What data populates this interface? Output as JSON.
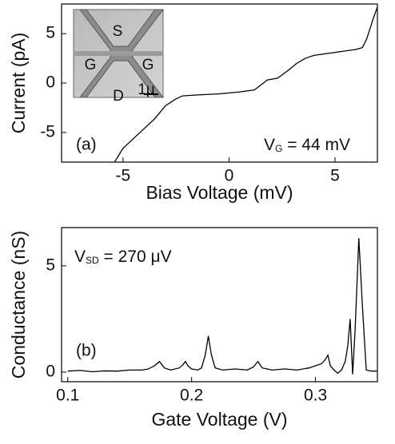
{
  "chart_data": [
    {
      "type": "line",
      "xlabel": "Bias Voltage (mV)",
      "ylabel": "Current (pA)",
      "x": [
        -5.4,
        -5,
        -4.5,
        -4,
        -3.5,
        -3,
        -2.5,
        -2.2,
        -1.5,
        -0.5,
        0.5,
        1.2,
        1.5,
        1.8,
        2.3,
        2.8,
        3.2,
        3.6,
        4,
        5,
        6,
        6.3,
        6.5,
        6.8,
        7
      ],
      "values": [
        -8,
        -6.6,
        -5.6,
        -4.6,
        -3.6,
        -2.3,
        -1.6,
        -1.3,
        -1.2,
        -1.1,
        -0.9,
        -0.7,
        -0.2,
        0.3,
        0.5,
        1.3,
        2,
        2.5,
        2.8,
        3.1,
        3.4,
        3.6,
        4.5,
        6.5,
        7.7
      ],
      "color": "#000000",
      "xlim": [
        -7.9,
        7
      ],
      "xticks": [
        -5,
        0,
        5
      ],
      "ylim": [
        -8,
        8
      ],
      "yticks": [
        -5,
        0,
        5
      ],
      "annotations": [
        {
          "text": "(a)"
        },
        {
          "text": "V",
          "sub": "G",
          "rest": " = 44 mV"
        }
      ],
      "inset_labels": [
        "S",
        "G",
        "G",
        "D",
        "1μ"
      ]
    },
    {
      "type": "line",
      "xlabel": "Gate Voltage (V)",
      "ylabel": "Conductance (nS)",
      "x": [
        0.1,
        0.11,
        0.12,
        0.13,
        0.14,
        0.15,
        0.16,
        0.165,
        0.17,
        0.174,
        0.178,
        0.183,
        0.19,
        0.193,
        0.195,
        0.197,
        0.2,
        0.205,
        0.208,
        0.211,
        0.2135,
        0.216,
        0.219,
        0.225,
        0.235,
        0.245,
        0.25,
        0.2535,
        0.257,
        0.265,
        0.275,
        0.285,
        0.295,
        0.3,
        0.305,
        0.308,
        0.31,
        0.312,
        0.315,
        0.318,
        0.321,
        0.324,
        0.326,
        0.328,
        0.33,
        0.332,
        0.335,
        0.338,
        0.341,
        0.345,
        0.35
      ],
      "values": [
        0.05,
        0.08,
        0.02,
        0.06,
        0.05,
        0.1,
        0.1,
        0.15,
        0.3,
        0.5,
        0.2,
        0.1,
        0.2,
        0.35,
        0.5,
        0.3,
        0.15,
        0.1,
        0.2,
        0.8,
        1.7,
        0.8,
        0.2,
        0.1,
        0.15,
        0.1,
        0.25,
        0.5,
        0.2,
        0.1,
        0.15,
        0.1,
        0.2,
        0.3,
        0.4,
        0.6,
        0.8,
        0.3,
        0.1,
        -0.05,
        0.1,
        0.5,
        1.2,
        2.5,
        -0.1,
        2.0,
        6.3,
        3,
        0.1,
        0.05,
        0.05
      ],
      "color": "#000000",
      "xlim": [
        0.095,
        0.35
      ],
      "xticks": [
        0.1,
        0.2,
        0.3
      ],
      "ylim": [
        -0.45,
        6.8
      ],
      "yticks": [
        0,
        5
      ],
      "annotations": [
        {
          "text": "(b)"
        },
        {
          "text": "V",
          "sub": "SD",
          "rest": " = 270 μV"
        }
      ]
    }
  ]
}
